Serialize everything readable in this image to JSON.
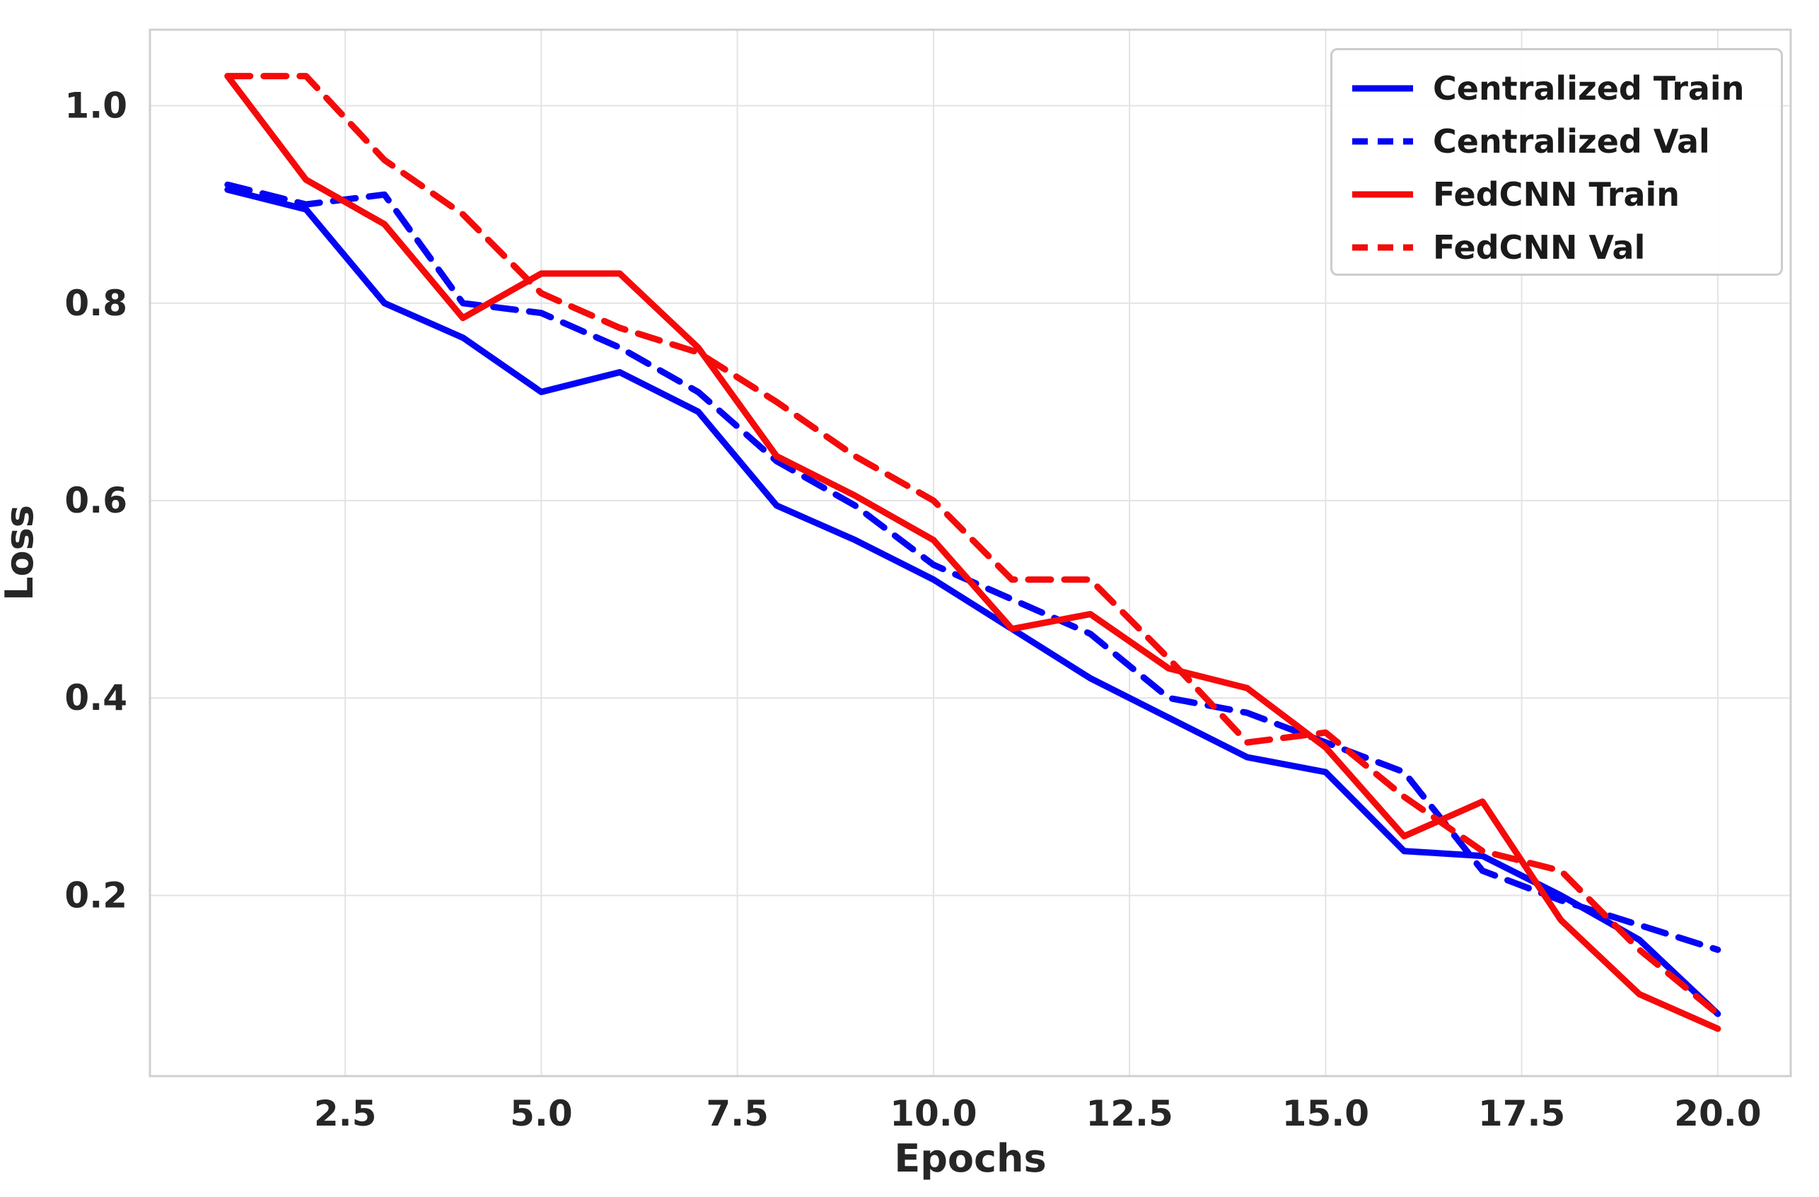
{
  "figure": {
    "background": "#ffffff",
    "grid_color": "#e3e3e3",
    "border_color": "#cfcfcf",
    "text_color": "#262626"
  },
  "chart_data": {
    "type": "line",
    "title": "",
    "xlabel": "Epochs",
    "ylabel": "Loss",
    "x": [
      1,
      2,
      3,
      4,
      5,
      6,
      7,
      8,
      9,
      10,
      11,
      12,
      13,
      14,
      15,
      16,
      17,
      18,
      19,
      20
    ],
    "series": [
      {
        "name": "Centralized Train",
        "color": "#0404f5",
        "style": "solid",
        "values": [
          0.915,
          0.895,
          0.8,
          0.765,
          0.71,
          0.73,
          0.69,
          0.595,
          0.56,
          0.52,
          0.47,
          0.42,
          0.38,
          0.34,
          0.325,
          0.245,
          0.24,
          0.2,
          0.155,
          0.08
        ]
      },
      {
        "name": "Centralized Val",
        "color": "#0404f5",
        "style": "dashed",
        "values": [
          0.92,
          0.9,
          0.91,
          0.8,
          0.79,
          0.755,
          0.71,
          0.64,
          0.595,
          0.535,
          0.5,
          0.465,
          0.4,
          0.385,
          0.355,
          0.325,
          0.225,
          0.195,
          0.17,
          0.145
        ]
      },
      {
        "name": "FedCNN Train",
        "color": "#f50a0a",
        "style": "solid",
        "values": [
          1.03,
          0.925,
          0.88,
          0.785,
          0.83,
          0.83,
          0.755,
          0.645,
          0.605,
          0.56,
          0.47,
          0.485,
          0.43,
          0.41,
          0.35,
          0.26,
          0.295,
          0.175,
          0.1,
          0.065
        ]
      },
      {
        "name": "FedCNN Val",
        "color": "#f50a0a",
        "style": "dashed",
        "values": [
          1.03,
          1.03,
          0.945,
          0.89,
          0.81,
          0.775,
          0.75,
          0.7,
          0.645,
          0.6,
          0.52,
          0.52,
          0.44,
          0.355,
          0.365,
          0.3,
          0.245,
          0.225,
          0.145,
          0.08
        ]
      }
    ],
    "x_ticks": [
      "2.5",
      "5.0",
      "7.5",
      "10.0",
      "12.5",
      "15.0",
      "17.5",
      "20.0"
    ],
    "x_tick_values": [
      2.5,
      5.0,
      7.5,
      10.0,
      12.5,
      15.0,
      17.5,
      20.0
    ],
    "y_ticks": [
      "0.2",
      "0.4",
      "0.6",
      "0.8",
      "1.0"
    ],
    "y_tick_values": [
      0.2,
      0.4,
      0.6,
      0.8,
      1.0
    ],
    "xlim": [
      0.01,
      20.93
    ],
    "ylim": [
      0.017,
      1.077
    ],
    "grid": true,
    "legend_position": "upper right"
  }
}
